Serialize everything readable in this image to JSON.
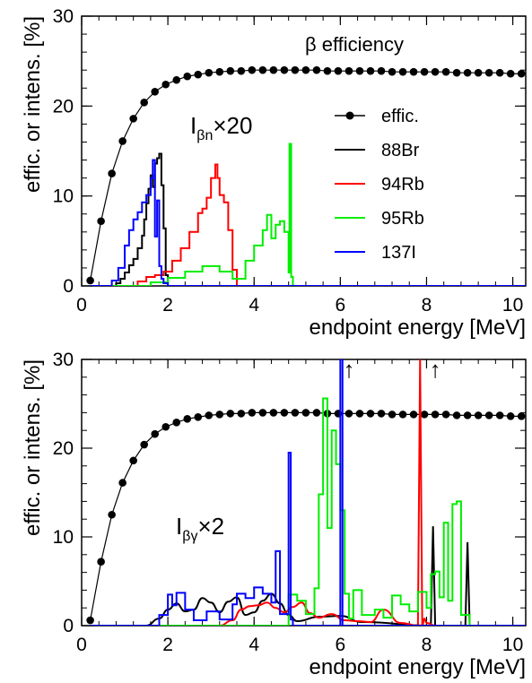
{
  "chart_data": [
    {
      "type": "line",
      "title": "",
      "annotation": "β efficiency",
      "multiplier_label": {
        "base": "I",
        "sub": "βn",
        "suffix": "×20"
      },
      "xlabel": "endpoint energy [MeV]",
      "ylabel": "effic. or intens. [%]",
      "xlim": [
        0,
        10.3
      ],
      "ylim": [
        0,
        30
      ],
      "xticks": [
        0,
        2,
        4,
        6,
        8,
        10
      ],
      "yticks": [
        0,
        10,
        20,
        30
      ],
      "legend": {
        "placement": "right",
        "entries": [
          "effic.",
          "88Br",
          "94Rb",
          "95Rb",
          "137I"
        ]
      },
      "series": [
        {
          "name": "effic.",
          "style": "marker-line",
          "color": "#000000",
          "x": [
            0.2,
            0.45,
            0.7,
            0.95,
            1.2,
            1.45,
            1.7,
            1.95,
            2.2,
            2.45,
            2.7,
            2.95,
            3.2,
            3.45,
            3.7,
            3.95,
            4.2,
            4.45,
            4.7,
            4.95,
            5.2,
            5.45,
            5.7,
            5.95,
            6.2,
            6.45,
            6.7,
            6.95,
            7.2,
            7.45,
            7.7,
            7.95,
            8.2,
            8.45,
            8.7,
            8.95,
            9.2,
            9.45,
            9.7,
            9.95,
            10.2
          ],
          "y": [
            0.6,
            7.2,
            12.5,
            16.1,
            18.6,
            20.4,
            21.6,
            22.4,
            22.9,
            23.3,
            23.5,
            23.7,
            23.8,
            23.9,
            23.9,
            24.0,
            24.0,
            24.0,
            24.0,
            24.0,
            24.0,
            24.0,
            23.9,
            23.9,
            23.9,
            23.9,
            23.9,
            23.9,
            23.8,
            23.8,
            23.8,
            23.8,
            23.8,
            23.8,
            23.7,
            23.7,
            23.7,
            23.7,
            23.7,
            23.6,
            23.6
          ]
        },
        {
          "name": "88Br",
          "style": "step",
          "color": "#000000",
          "x": [
            0.2,
            0.6,
            0.8,
            0.9,
            1.0,
            1.1,
            1.2,
            1.3,
            1.4,
            1.45,
            1.5,
            1.55,
            1.6,
            1.65,
            1.7,
            1.75,
            1.8,
            1.85,
            1.9,
            1.95,
            2.0,
            10.3
          ],
          "y": [
            0,
            0,
            0.3,
            0.8,
            1.5,
            2.3,
            3.0,
            4.2,
            5.6,
            7.4,
            9.2,
            10.8,
            12.3,
            11.0,
            13.6,
            14.2,
            14.7,
            11.2,
            6.4,
            1.2,
            0,
            0
          ]
        },
        {
          "name": "94Rb",
          "style": "step",
          "color": "#ff0000",
          "x": [
            0.2,
            1.1,
            1.3,
            1.5,
            1.7,
            1.9,
            2.1,
            2.3,
            2.5,
            2.7,
            2.8,
            2.9,
            3.0,
            3.1,
            3.15,
            3.2,
            3.3,
            3.4,
            3.5,
            3.6,
            10.3
          ],
          "y": [
            0,
            0,
            0.5,
            1.0,
            1.2,
            1.6,
            2.8,
            4.2,
            6.0,
            8.1,
            8.6,
            9.8,
            12.0,
            13.5,
            12.0,
            10.1,
            9.3,
            6.2,
            1.8,
            0,
            0
          ]
        },
        {
          "name": "95Rb",
          "style": "step",
          "color": "#00ee00",
          "x": [
            0.2,
            1.3,
            1.6,
            2.0,
            2.4,
            2.8,
            3.2,
            3.5,
            3.8,
            4.0,
            4.2,
            4.3,
            4.4,
            4.5,
            4.6,
            4.7,
            4.8,
            4.82,
            4.86,
            4.9,
            10.3
          ],
          "y": [
            0,
            0,
            0.4,
            0.9,
            1.6,
            2.2,
            1.6,
            0.8,
            2.8,
            4.5,
            6.2,
            7.9,
            5.3,
            6.8,
            7.2,
            6.0,
            1.5,
            15.8,
            1.0,
            0,
            0
          ]
        },
        {
          "name": "137I",
          "style": "step",
          "color": "#0000ff",
          "x": [
            0.2,
            0.5,
            0.7,
            0.85,
            1.0,
            1.1,
            1.2,
            1.3,
            1.4,
            1.5,
            1.6,
            1.65,
            1.7,
            1.75,
            1.8,
            1.85,
            1.9,
            2.0,
            10.3
          ],
          "y": [
            0,
            0,
            0.6,
            2.0,
            4.5,
            6.2,
            7.4,
            8.2,
            9.3,
            10.1,
            12.0,
            14.0,
            5.5,
            9.5,
            2.2,
            0.8,
            0.3,
            0,
            0
          ]
        }
      ]
    },
    {
      "type": "line",
      "title": "",
      "multiplier_label": {
        "base": "I",
        "sub": "βγ",
        "suffix": "×2"
      },
      "xlabel": "endpoint energy [MeV]",
      "ylabel": "effic. or intens. [%]",
      "xlim": [
        0,
        10.3
      ],
      "ylim": [
        0,
        30
      ],
      "xticks": [
        0,
        2,
        4,
        6,
        8,
        10
      ],
      "yticks": [
        0,
        10,
        20,
        30
      ],
      "arrows": [
        {
          "x": 6.2,
          "y": 28.0,
          "text": "↑"
        },
        {
          "x": 8.2,
          "y": 28.0,
          "text": "↑"
        }
      ],
      "series": [
        {
          "name": "effic.",
          "style": "marker-line",
          "color": "#000000",
          "x": [
            0.2,
            0.45,
            0.7,
            0.95,
            1.2,
            1.45,
            1.7,
            1.95,
            2.2,
            2.45,
            2.7,
            2.95,
            3.2,
            3.45,
            3.7,
            3.95,
            4.2,
            4.45,
            4.7,
            4.95,
            5.2,
            5.45,
            5.7,
            5.95,
            6.2,
            6.45,
            6.7,
            6.95,
            7.2,
            7.45,
            7.7,
            7.95,
            8.2,
            8.45,
            8.7,
            8.95,
            9.2,
            9.45,
            9.7,
            9.95,
            10.2
          ],
          "y": [
            0.6,
            7.2,
            12.5,
            16.1,
            18.6,
            20.4,
            21.6,
            22.4,
            22.9,
            23.3,
            23.5,
            23.7,
            23.8,
            23.9,
            23.9,
            24.0,
            24.0,
            24.0,
            24.0,
            24.0,
            24.0,
            24.0,
            23.9,
            23.9,
            23.9,
            23.9,
            23.9,
            23.9,
            23.8,
            23.8,
            23.8,
            23.8,
            23.8,
            23.8,
            23.7,
            23.7,
            23.7,
            23.7,
            23.7,
            23.6,
            23.6
          ]
        },
        {
          "name": "88Br",
          "style": "smooth",
          "color": "#000000",
          "x": [
            0.2,
            1.5,
            1.8,
            2.0,
            2.2,
            2.4,
            2.6,
            2.8,
            3.0,
            3.2,
            3.4,
            3.6,
            3.8,
            4.0,
            4.2,
            4.4,
            4.6,
            4.8,
            5.0,
            5.5,
            6.0,
            6.5,
            8.1,
            8.15,
            8.2,
            8.25,
            8.9,
            8.95,
            9.0,
            9.05,
            10.3
          ],
          "y": [
            0,
            0,
            0.8,
            1.8,
            2.5,
            1.6,
            1.8,
            3.1,
            2.6,
            1.5,
            2.7,
            3.2,
            1.2,
            1.5,
            2.8,
            3.6,
            2.5,
            1.2,
            0.5,
            1.0,
            1.1,
            0.4,
            0,
            11.2,
            0,
            0,
            0,
            9.4,
            0,
            0,
            0
          ]
        },
        {
          "name": "94Rb",
          "style": "smooth",
          "color": "#ff0000",
          "x": [
            0.2,
            3.2,
            3.5,
            3.7,
            3.9,
            4.1,
            4.3,
            4.5,
            4.7,
            4.9,
            5.1,
            5.3,
            5.5,
            5.8,
            6.1,
            6.4,
            6.7,
            7.0,
            7.4,
            7.8,
            7.85,
            7.9,
            7.95,
            8.0,
            8.2,
            10.3
          ],
          "y": [
            0,
            0,
            0.6,
            1.8,
            2.2,
            2.3,
            2.6,
            2.0,
            1.5,
            2.1,
            2.6,
            1.4,
            0.9,
            1.3,
            0.6,
            0.5,
            0.4,
            1.8,
            0.3,
            0,
            30,
            0,
            0.8,
            0.3,
            0,
            0
          ]
        },
        {
          "name": "95Rb",
          "style": "step",
          "color": "#00ee00",
          "x": [
            0.2,
            4.6,
            4.8,
            5.0,
            5.2,
            5.4,
            5.5,
            5.6,
            5.7,
            5.8,
            5.9,
            6.0,
            6.1,
            6.2,
            6.3,
            6.5,
            6.8,
            7.0,
            7.2,
            7.4,
            7.6,
            7.8,
            8.0,
            8.1,
            8.2,
            8.3,
            8.4,
            8.5,
            8.6,
            8.7,
            8.8,
            9.0,
            10.3
          ],
          "y": [
            0,
            0,
            3.5,
            2.8,
            1.3,
            4.2,
            14.8,
            25.6,
            11.0,
            22.0,
            18.2,
            13.0,
            3.6,
            0.8,
            4.0,
            1.2,
            1.8,
            0.9,
            3.4,
            2.4,
            1.6,
            3.8,
            2.0,
            5.8,
            6.1,
            3.2,
            11.6,
            2.8,
            13.7,
            14.0,
            1.2,
            0,
            0
          ]
        },
        {
          "name": "137I",
          "style": "step",
          "color": "#0000ff",
          "x": [
            0.2,
            1.5,
            1.8,
            2.0,
            2.1,
            2.2,
            2.4,
            2.6,
            2.9,
            3.2,
            3.5,
            3.6,
            3.8,
            4.0,
            4.2,
            4.4,
            4.5,
            4.6,
            4.8,
            4.85,
            4.9,
            5.8,
            5.95,
            6.0,
            6.05,
            6.2,
            10.3
          ],
          "y": [
            0,
            0,
            1.2,
            3.5,
            2.3,
            3.7,
            1.8,
            0.6,
            1.6,
            0.7,
            2.4,
            3.6,
            3.1,
            4.3,
            3.6,
            2.6,
            8.4,
            1.3,
            19.5,
            0.7,
            0,
            0,
            0,
            30,
            0,
            0,
            0
          ]
        }
      ]
    }
  ]
}
